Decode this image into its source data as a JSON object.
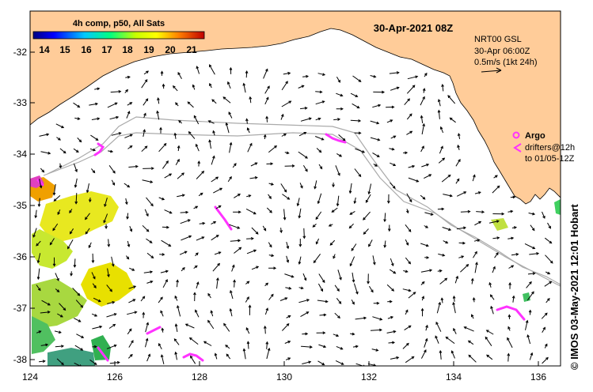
{
  "colorbar": {
    "title": "4h comp, p50, All Sats",
    "ticks": [
      "14",
      "15",
      "16",
      "17",
      "18",
      "19",
      "20",
      "21"
    ]
  },
  "header": {
    "date": "30-Apr-2021 08Z",
    "product": "NRT00 GSL",
    "time": "30-Apr 06:00Z",
    "scale_label": "0.5m/s (1kt 24h)"
  },
  "legend": {
    "argo_label": "Argo",
    "drifters_line1": "drifters@12h",
    "drifters_line2": "to 01/05-12Z"
  },
  "credit": "© IMOS 03-May-2021 12:01 Hobart",
  "axes": {
    "lon_ticks": [
      "124",
      "126",
      "128",
      "130",
      "132",
      "134",
      "136"
    ],
    "lat_ticks": [
      "-32",
      "-33",
      "-34",
      "-35",
      "-36",
      "-37",
      "-38"
    ]
  },
  "colors": {
    "land": "#ffcc99",
    "sea": "#ffffff",
    "argo": "#ff33ff",
    "contour": "#aaaaaa"
  }
}
